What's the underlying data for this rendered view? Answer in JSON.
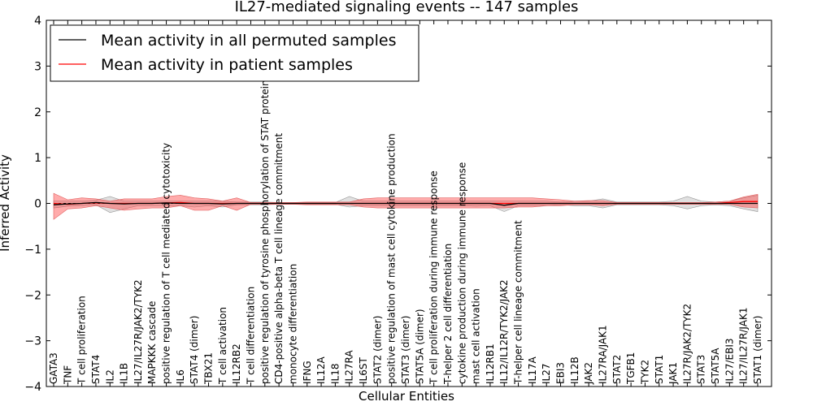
{
  "chart_data": {
    "type": "line",
    "title": "IL27-mediated signaling events -- 147 samples",
    "xlabel": "Cellular Entities",
    "ylabel": "Inferred Activity",
    "ylim": [
      -4,
      4
    ],
    "yticks": [
      -4,
      -3,
      -2,
      -1,
      0,
      1,
      2,
      3,
      4
    ],
    "ytick_labels": [
      "−4",
      "−3",
      "−2",
      "−1",
      "0",
      "1",
      "2",
      "3",
      "4"
    ],
    "legend": {
      "location": "top-left",
      "entries": [
        {
          "label": "Mean activity in all permuted samples",
          "color": "#000000"
        },
        {
          "label": "Mean activity in patient samples",
          "color": "#ff0000"
        }
      ]
    },
    "categories": [
      "GATA3",
      "TNF",
      "T cell proliferation",
      "STAT4",
      "IL2",
      "IL1B",
      "IL27/IL27R/JAK2/TYK2",
      "MAPKKK cascade",
      "positive regulation of T cell mediated cytotoxicity",
      "IL6",
      "STAT4 (dimer)",
      "TBX21",
      "T cell activation",
      "IL12RB2",
      "T cell differentiation",
      "positive regulation of tyrosine phosphorylation of STAT protein",
      "CD4-positive alpha-beta T cell lineage commitment",
      "monocyte differentiation",
      "IFNG",
      "IL12A",
      "IL18",
      "IL27RA",
      "IL6ST",
      "STAT2 (dimer)",
      "positive regulation of mast cell cytokine production",
      "STAT3 (dimer)",
      "STAT5A (dimer)",
      "T cell proliferation during immune response",
      "T-helper 2 cell differentiation",
      "cytokine production during immune response",
      "mast cell activation",
      "IL12RB1",
      "IL12/IL12R/TYK2/JAK2",
      "T-helper cell lineage commitment",
      "IL17A",
      "IL27",
      "EBI3",
      "IL12B",
      "JAK2",
      "IL27RA/JAK1",
      "STAT2",
      "TGFB1",
      "TYK2",
      "STAT1",
      "JAK1",
      "IL27R/JAK2/TYK2",
      "STAT3",
      "STAT5A",
      "IL27/EBI3",
      "IL27/IL27R/JAK1",
      "STAT1 (dimer)"
    ],
    "series": [
      {
        "name": "Mean activity in all permuted samples",
        "color": "#000000",
        "values": [
          -0.03,
          -0.01,
          0.0,
          0.02,
          0.0,
          -0.01,
          0.0,
          0.0,
          0.01,
          0.0,
          0.0,
          0.0,
          -0.01,
          0.0,
          0.0,
          0.0,
          0.0,
          0.0,
          0.0,
          0.0,
          0.0,
          0.0,
          0.0,
          0.0,
          0.0,
          0.0,
          0.0,
          0.0,
          0.0,
          0.0,
          0.0,
          0.0,
          -0.04,
          0.0,
          0.0,
          0.0,
          0.0,
          0.0,
          0.0,
          0.0,
          0.0,
          0.0,
          0.0,
          0.0,
          0.0,
          0.0,
          0.0,
          0.0,
          0.0,
          0.0,
          0.0
        ],
        "lower": [
          -0.1,
          -0.06,
          -0.05,
          -0.03,
          -0.2,
          -0.12,
          -0.05,
          -0.05,
          -0.05,
          -0.05,
          -0.08,
          -0.05,
          -0.08,
          -0.03,
          -0.03,
          -0.03,
          -0.02,
          -0.02,
          -0.02,
          -0.02,
          -0.02,
          -0.08,
          -0.05,
          -0.05,
          -0.05,
          -0.05,
          -0.05,
          -0.05,
          -0.05,
          -0.05,
          -0.06,
          -0.05,
          -0.18,
          -0.05,
          -0.05,
          -0.05,
          -0.03,
          -0.05,
          -0.05,
          -0.1,
          -0.03,
          -0.03,
          -0.03,
          -0.03,
          -0.05,
          -0.12,
          -0.05,
          -0.03,
          -0.05,
          -0.12,
          -0.18
        ],
        "upper": [
          0.05,
          0.05,
          0.05,
          0.07,
          0.15,
          0.05,
          0.05,
          0.05,
          0.05,
          0.05,
          0.05,
          0.05,
          0.05,
          0.03,
          0.03,
          0.03,
          0.02,
          0.02,
          0.02,
          0.02,
          0.02,
          0.15,
          0.05,
          0.05,
          0.05,
          0.05,
          0.05,
          0.05,
          0.05,
          0.05,
          0.05,
          0.05,
          0.05,
          0.05,
          0.05,
          0.05,
          0.03,
          0.05,
          0.05,
          0.1,
          0.03,
          0.03,
          0.03,
          0.03,
          0.05,
          0.15,
          0.05,
          0.03,
          0.05,
          0.12,
          0.18
        ]
      },
      {
        "name": "Mean activity in patient samples",
        "color": "#ff0000",
        "values": [
          0.0,
          -0.02,
          0.0,
          0.01,
          0.0,
          0.0,
          0.0,
          0.0,
          0.01,
          0.02,
          0.0,
          0.0,
          0.0,
          0.0,
          0.0,
          0.0,
          0.0,
          0.0,
          0.0,
          0.0,
          0.0,
          0.0,
          0.0,
          0.0,
          0.0,
          0.0,
          0.0,
          0.0,
          0.0,
          0.0,
          0.0,
          0.0,
          0.0,
          0.0,
          0.0,
          0.0,
          0.0,
          0.0,
          0.0,
          0.0,
          0.0,
          0.0,
          0.0,
          0.0,
          0.0,
          0.0,
          0.0,
          0.0,
          0.02,
          0.04,
          0.04
        ],
        "lower": [
          -0.35,
          -0.12,
          -0.1,
          -0.05,
          -0.1,
          -0.15,
          -0.12,
          -0.1,
          -0.1,
          -0.05,
          -0.15,
          -0.15,
          -0.05,
          -0.15,
          -0.02,
          -0.02,
          -0.02,
          -0.02,
          -0.03,
          -0.03,
          -0.03,
          -0.03,
          -0.08,
          -0.1,
          -0.1,
          -0.1,
          -0.1,
          -0.1,
          -0.1,
          -0.1,
          -0.1,
          -0.1,
          -0.1,
          -0.08,
          -0.08,
          -0.05,
          -0.05,
          -0.03,
          -0.03,
          -0.05,
          -0.02,
          -0.02,
          -0.02,
          -0.02,
          -0.02,
          -0.02,
          -0.02,
          -0.02,
          -0.02,
          -0.08,
          -0.1
        ],
        "upper": [
          0.22,
          0.08,
          0.12,
          0.1,
          0.05,
          0.1,
          0.1,
          0.1,
          0.15,
          0.18,
          0.12,
          0.1,
          0.05,
          0.12,
          0.02,
          0.02,
          0.02,
          0.02,
          0.03,
          0.03,
          0.03,
          0.03,
          0.1,
          0.12,
          0.12,
          0.12,
          0.12,
          0.12,
          0.12,
          0.12,
          0.12,
          0.12,
          0.12,
          0.12,
          0.12,
          0.1,
          0.08,
          0.05,
          0.06,
          0.06,
          0.02,
          0.02,
          0.02,
          0.02,
          0.02,
          0.02,
          0.02,
          0.03,
          0.05,
          0.14,
          0.2
        ]
      }
    ]
  }
}
